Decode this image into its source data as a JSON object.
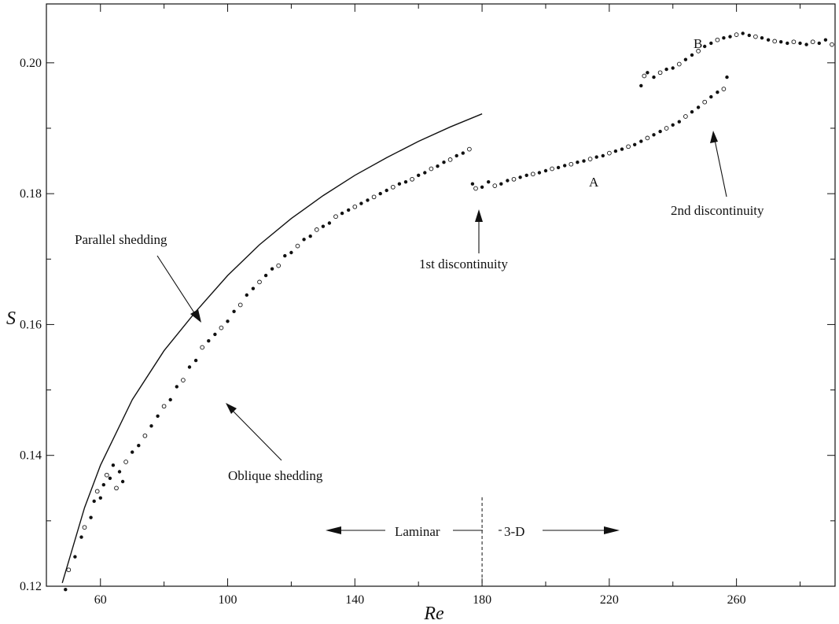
{
  "chart_data": {
    "type": "scatter",
    "xlabel": "Re",
    "ylabel": "S",
    "xlim": [
      43,
      291
    ],
    "ylim": [
      0.12,
      0.209
    ],
    "x_ticks": [
      60,
      100,
      140,
      180,
      220,
      260
    ],
    "y_ticks": [
      0.12,
      0.14,
      0.16,
      0.18,
      0.2
    ],
    "x_tick_labels": [
      "60",
      "100",
      "140",
      "180",
      "220",
      "260"
    ],
    "y_tick_labels": [
      "0.12",
      "0.14",
      "0.16",
      "0.18",
      "0.20"
    ],
    "grid": false,
    "series": [
      {
        "kind": "curve",
        "x": [
          48,
          55,
          60,
          70,
          80,
          90,
          100,
          110,
          120,
          130,
          140,
          150,
          160,
          170,
          180
        ],
        "y": [
          0.1205,
          0.132,
          0.1385,
          0.1485,
          0.156,
          0.162,
          0.1675,
          0.1722,
          0.1762,
          0.1797,
          0.1828,
          0.1855,
          0.188,
          0.1902,
          0.1922
        ]
      },
      {
        "kind": "points",
        "x": [
          49,
          50,
          52,
          54,
          55,
          57,
          58,
          59,
          60,
          61,
          62,
          63,
          64,
          65,
          66,
          67,
          68,
          70,
          72,
          74,
          76,
          78,
          80,
          82,
          84,
          86,
          88,
          90,
          92,
          94,
          96,
          98,
          100,
          102,
          104,
          106,
          108,
          110,
          112,
          114,
          116,
          118,
          120,
          122,
          124,
          126,
          128,
          130,
          132,
          134,
          136,
          138,
          140,
          142,
          144,
          146,
          148,
          150,
          152,
          154,
          156,
          158,
          160,
          162,
          164,
          166,
          168,
          170,
          172,
          174,
          176
        ],
        "y": [
          0.1195,
          0.1225,
          0.1245,
          0.1275,
          0.129,
          0.1305,
          0.133,
          0.1345,
          0.1335,
          0.1355,
          0.137,
          0.1365,
          0.1385,
          0.135,
          0.1375,
          0.136,
          0.139,
          0.1405,
          0.1415,
          0.143,
          0.1445,
          0.146,
          0.1475,
          0.1485,
          0.1505,
          0.1515,
          0.1535,
          0.1545,
          0.1565,
          0.1575,
          0.1585,
          0.1595,
          0.1605,
          0.162,
          0.163,
          0.1645,
          0.1655,
          0.1665,
          0.1675,
          0.1685,
          0.169,
          0.1705,
          0.171,
          0.172,
          0.173,
          0.1735,
          0.1745,
          0.175,
          0.1755,
          0.1765,
          0.177,
          0.1775,
          0.178,
          0.1785,
          0.179,
          0.1795,
          0.18,
          0.1805,
          0.181,
          0.1815,
          0.1818,
          0.1822,
          0.1828,
          0.1832,
          0.1838,
          0.1842,
          0.1848,
          0.1852,
          0.1858,
          0.1862,
          0.1868
        ]
      },
      {
        "kind": "points",
        "x": [
          177,
          178,
          180,
          182,
          184,
          186,
          188,
          190,
          192,
          194,
          196,
          198,
          200,
          202,
          204,
          206,
          208,
          210,
          212,
          214,
          216,
          218,
          220,
          222,
          224,
          226,
          228,
          230,
          232,
          234,
          236,
          238,
          240,
          242,
          244,
          246,
          248,
          250,
          252,
          254,
          256,
          257
        ],
        "y": [
          0.1815,
          0.1808,
          0.181,
          0.1818,
          0.1812,
          0.1815,
          0.182,
          0.1822,
          0.1825,
          0.1828,
          0.183,
          0.1832,
          0.1835,
          0.1838,
          0.184,
          0.1843,
          0.1845,
          0.1848,
          0.185,
          0.1853,
          0.1856,
          0.1858,
          0.1862,
          0.1865,
          0.1868,
          0.1872,
          0.1875,
          0.188,
          0.1885,
          0.189,
          0.1895,
          0.19,
          0.1905,
          0.191,
          0.1918,
          0.1925,
          0.1932,
          0.194,
          0.1948,
          0.1955,
          0.196,
          0.1978
        ]
      },
      {
        "kind": "points",
        "x": [
          230,
          231,
          232,
          234,
          236,
          238,
          240,
          242,
          244,
          246,
          248,
          250,
          252,
          254,
          256,
          258,
          260,
          262,
          264,
          266,
          268,
          270,
          272,
          274,
          276,
          278,
          280,
          282,
          284,
          286,
          288,
          290
        ],
        "y": [
          0.1965,
          0.198,
          0.1985,
          0.1978,
          0.1985,
          0.199,
          0.1992,
          0.1998,
          0.2005,
          0.2012,
          0.2018,
          0.2025,
          0.203,
          0.2035,
          0.2038,
          0.204,
          0.2043,
          0.2045,
          0.2042,
          0.204,
          0.2038,
          0.2035,
          0.2033,
          0.2032,
          0.203,
          0.2032,
          0.203,
          0.2028,
          0.2032,
          0.203,
          0.2035,
          0.2028
        ]
      }
    ],
    "annotations": [
      {
        "text": "Parallel shedding"
      },
      {
        "text": "Oblique shedding"
      },
      {
        "text": "1st discontinuity"
      },
      {
        "text": "2nd discontinuity"
      },
      {
        "text": "A"
      },
      {
        "text": "B"
      },
      {
        "text": "Laminar"
      },
      {
        "text": "3-D"
      }
    ]
  }
}
